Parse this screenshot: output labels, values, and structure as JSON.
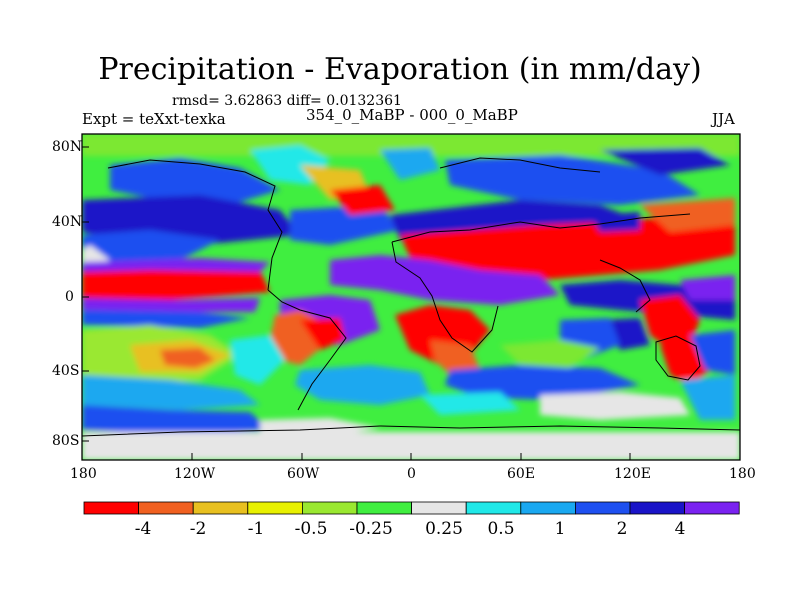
{
  "title": "Precipitation - Evaporation (in mm/day)",
  "stats": "rmsd= 3.62863 diff= 0.0132361",
  "experiment_label": "Expt = teXxt-texka",
  "comparison_label": "354_0_MaBP - 000_0_MaBP",
  "season": "JJA",
  "lat_ticks": [
    "80N",
    "40N",
    "0",
    "40S",
    "80S"
  ],
  "lon_ticks": [
    "180",
    "120W",
    "60W",
    "0",
    "60E",
    "120E",
    "180"
  ],
  "colorbar": {
    "colors": [
      "#ff0000",
      "#f06020",
      "#e8c020",
      "#e8f000",
      "#9ae830",
      "#40ee40",
      "#e6e6e6",
      "#20e8e8",
      "#1aa8f0",
      "#1e50f0",
      "#1a14c8",
      "#7a22f0"
    ],
    "labels": [
      "-4",
      "-2",
      "-1",
      "-0.5",
      "-0.25",
      "0.25",
      "0.5",
      "1",
      "2",
      "4"
    ]
  }
}
